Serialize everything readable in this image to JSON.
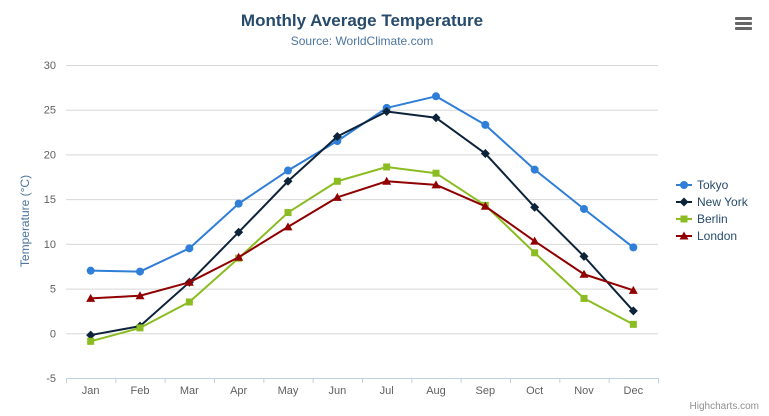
{
  "chart_data": {
    "type": "line",
    "title": "Monthly Average Temperature",
    "subtitle": "Source: WorldClimate.com",
    "categories": [
      "Jan",
      "Feb",
      "Mar",
      "Apr",
      "May",
      "Jun",
      "Jul",
      "Aug",
      "Sep",
      "Oct",
      "Nov",
      "Dec"
    ],
    "xlabel": "",
    "ylabel": "Temperature (°C)",
    "ylim": [
      -5,
      30
    ],
    "yticks": [
      -5,
      0,
      5,
      10,
      15,
      20,
      25,
      30
    ],
    "grid": true,
    "legend_position": "right",
    "series": [
      {
        "name": "Tokyo",
        "color": "#2f7ed8",
        "marker": "circle",
        "values": [
          7.0,
          6.9,
          9.5,
          14.5,
          18.2,
          21.5,
          25.2,
          26.5,
          23.3,
          18.3,
          13.9,
          9.6
        ]
      },
      {
        "name": "New York",
        "color": "#0d233a",
        "marker": "diamond",
        "values": [
          -0.2,
          0.8,
          5.7,
          11.3,
          17.0,
          22.0,
          24.8,
          24.1,
          20.1,
          14.1,
          8.6,
          2.5
        ]
      },
      {
        "name": "Berlin",
        "color": "#8bbc21",
        "marker": "square",
        "values": [
          -0.9,
          0.6,
          3.5,
          8.4,
          13.5,
          17.0,
          18.6,
          17.9,
          14.3,
          9.0,
          3.9,
          1.0
        ]
      },
      {
        "name": "London",
        "color": "#910000",
        "marker": "triangle",
        "values": [
          3.9,
          4.2,
          5.7,
          8.5,
          11.9,
          15.2,
          17.0,
          16.6,
          14.2,
          10.3,
          6.6,
          4.8
        ]
      }
    ],
    "colors": {
      "title": "#274b6d",
      "subtitle": "#4d759e",
      "axis_labels": "#606060",
      "gridline": "#d8d8d8",
      "axis_line": "#c0d0e0"
    }
  },
  "credits": {
    "label": "Highcharts.com"
  },
  "export_menu": {
    "tooltip": "Chart context menu"
  }
}
